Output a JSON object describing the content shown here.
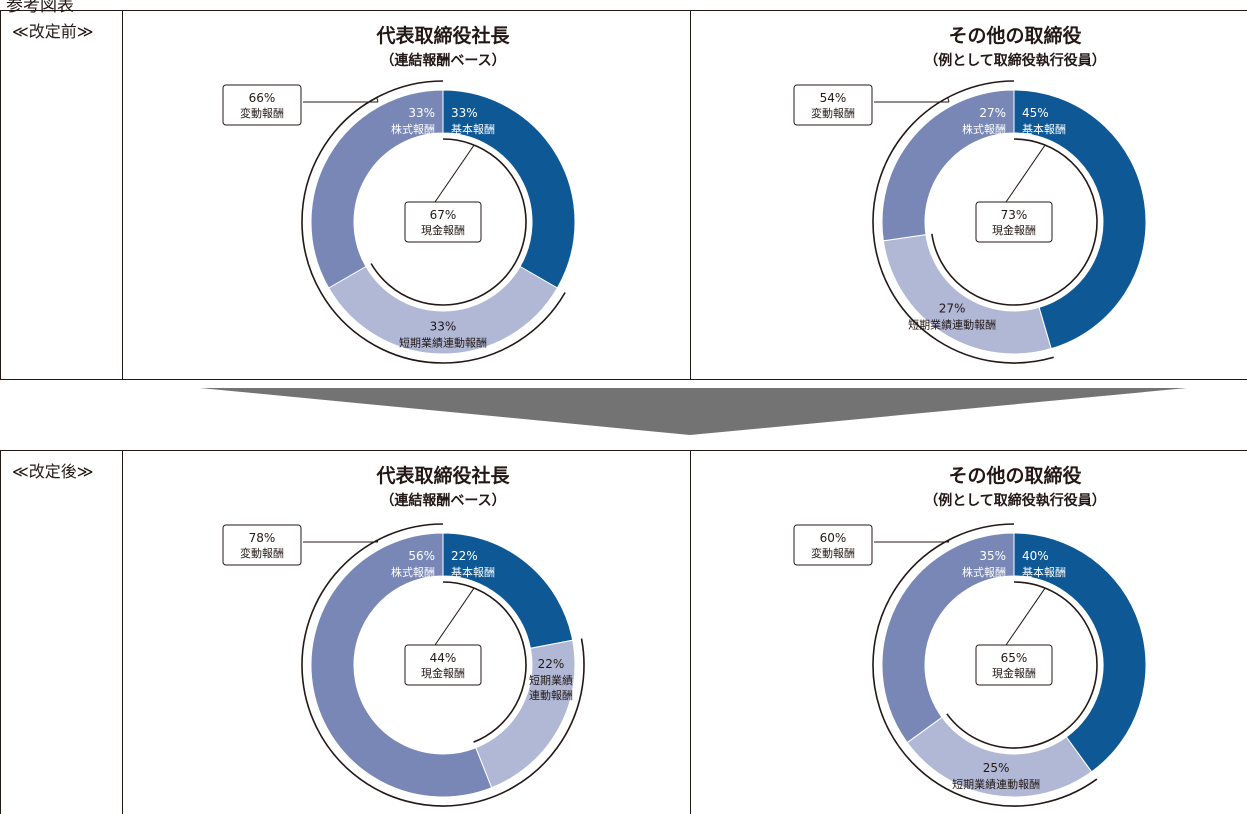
{
  "header_label": "参考図表",
  "colors": {
    "base": "#0f5896",
    "stock": "#7887b6",
    "bonus": "#b0b8d6",
    "line": "#231815",
    "arrow": "#737373"
  },
  "panels": [
    {
      "stage_label": "≪改定前≫",
      "charts": [
        {
          "title": "代表取締役社長",
          "subtitle": "（連結報酬ベース）",
          "total_variable": {
            "pct": "66%",
            "label": "変動報酬"
          },
          "total_cash": {
            "pct": "67%",
            "label": "現金報酬"
          },
          "segments": [
            {
              "key": "base",
              "value": 33,
              "pct": "33%",
              "label": "基本報酬"
            },
            {
              "key": "bonus",
              "value": 33,
              "pct": "33%",
              "label": "短期業績連動報酬"
            },
            {
              "key": "stock",
              "value": 33,
              "pct": "33%",
              "label": "株式報酬"
            }
          ]
        },
        {
          "title": "その他の取締役",
          "subtitle": "（例として取締役執行役員）",
          "total_variable": {
            "pct": "54%",
            "label": "変動報酬"
          },
          "total_cash": {
            "pct": "73%",
            "label": "現金報酬"
          },
          "segments": [
            {
              "key": "base",
              "value": 45,
              "pct": "45%",
              "label": "基本報酬"
            },
            {
              "key": "bonus",
              "value": 27,
              "pct": "27%",
              "label": "短期業績連動報酬"
            },
            {
              "key": "stock",
              "value": 27,
              "pct": "27%",
              "label": "株式報酬"
            }
          ]
        }
      ]
    },
    {
      "stage_label": "≪改定後≫",
      "charts": [
        {
          "title": "代表取締役社長",
          "subtitle": "（連結報酬ベース）",
          "total_variable": {
            "pct": "78%",
            "label": "変動報酬"
          },
          "total_cash": {
            "pct": "44%",
            "label": "現金報酬"
          },
          "segments": [
            {
              "key": "base",
              "value": 22,
              "pct": "22%",
              "label": "基本報酬"
            },
            {
              "key": "bonus",
              "value": 22,
              "pct": "22%",
              "label": "短期業績",
              "label2": "連動報酬"
            },
            {
              "key": "stock",
              "value": 56,
              "pct": "56%",
              "label": "株式報酬"
            }
          ]
        },
        {
          "title": "その他の取締役",
          "subtitle": "（例として取締役執行役員）",
          "total_variable": {
            "pct": "60%",
            "label": "変動報酬"
          },
          "total_cash": {
            "pct": "65%",
            "label": "現金報酬"
          },
          "segments": [
            {
              "key": "base",
              "value": 40,
              "pct": "40%",
              "label": "基本報酬"
            },
            {
              "key": "bonus",
              "value": 25,
              "pct": "25%",
              "label": "短期業績連動報酬"
            },
            {
              "key": "stock",
              "value": 35,
              "pct": "35%",
              "label": "株式報酬"
            }
          ]
        }
      ]
    }
  ],
  "chart_data": [
    {
      "type": "pie",
      "title": "代表取締役社長",
      "subtitle": "（連結報酬ベース）",
      "stage": "≪改定前≫",
      "categories": [
        "基本報酬",
        "短期業績連動報酬",
        "株式報酬"
      ],
      "values": [
        33,
        33,
        33
      ],
      "annotations": [
        {
          "text": "変動報酬",
          "value": 66
        },
        {
          "text": "現金報酬",
          "value": 67
        }
      ]
    },
    {
      "type": "pie",
      "title": "その他の取締役",
      "subtitle": "（例として取締役執行役員）",
      "stage": "≪改定前≫",
      "categories": [
        "基本報酬",
        "短期業績連動報酬",
        "株式報酬"
      ],
      "values": [
        45,
        27,
        27
      ],
      "annotations": [
        {
          "text": "変動報酬",
          "value": 54
        },
        {
          "text": "現金報酬",
          "value": 73
        }
      ]
    },
    {
      "type": "pie",
      "title": "代表取締役社長",
      "subtitle": "（連結報酬ベース）",
      "stage": "≪改定後≫",
      "categories": [
        "基本報酬",
        "短期業績連動報酬",
        "株式報酬"
      ],
      "values": [
        22,
        22,
        56
      ],
      "annotations": [
        {
          "text": "変動報酬",
          "value": 78
        },
        {
          "text": "現金報酬",
          "value": 44
        }
      ]
    },
    {
      "type": "pie",
      "title": "その他の取締役",
      "subtitle": "（例として取締役執行役員）",
      "stage": "≪改定後≫",
      "categories": [
        "基本報酬",
        "短期業績連動報酬",
        "株式報酬"
      ],
      "values": [
        40,
        25,
        35
      ],
      "annotations": [
        {
          "text": "変動報酬",
          "value": 60
        },
        {
          "text": "現金報酬",
          "value": 65
        }
      ]
    }
  ]
}
